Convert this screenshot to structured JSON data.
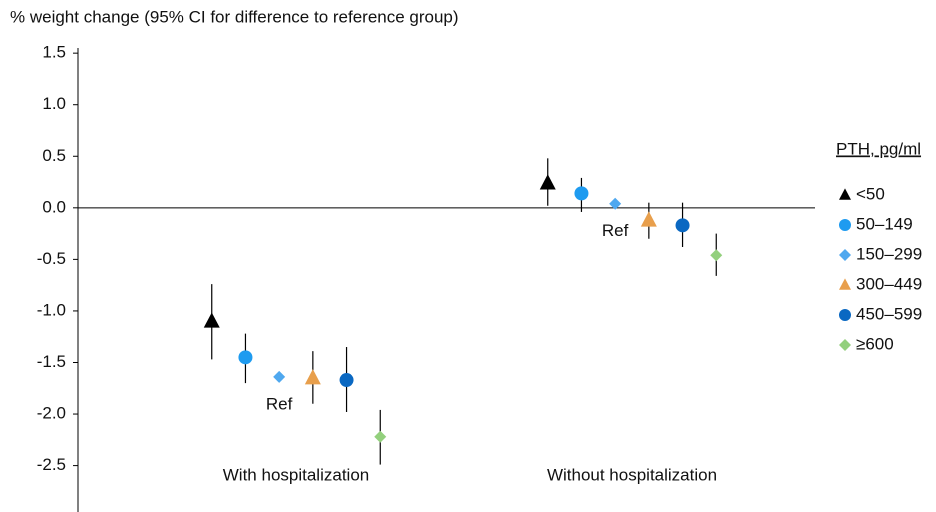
{
  "chart_data": {
    "type": "dot_errorbar",
    "title": "% weight change (95% CI for difference to reference group)",
    "categories": [
      "With hospitalization",
      "Without hospitalization"
    ],
    "ylim": [
      -2.95,
      1.55
    ],
    "yticks": [
      1.5,
      {
        "value": 1,
        "label": "1.0"
      },
      0.5,
      {
        "value": 0,
        "label": "0.0"
      },
      -0.5,
      {
        "value": -1,
        "label": "-1.0"
      },
      -1.5,
      {
        "value": -2,
        "label": "-2.0"
      },
      -2.5
    ],
    "legend_title": "PTH, pg/ml",
    "legend_position": "right",
    "annotations": [
      "Ref",
      "Ref"
    ],
    "series": [
      {
        "name": "<50",
        "color": "#000000",
        "marker": "triangle",
        "values": [
          -1.1,
          0.24
        ],
        "ci_low": [
          -1.47,
          0.02
        ],
        "ci_high": [
          -0.74,
          0.48
        ]
      },
      {
        "name": "50–149",
        "color": "#1e9bf0",
        "marker": "circle",
        "values": [
          -1.45,
          0.14
        ],
        "ci_low": [
          -1.7,
          -0.04
        ],
        "ci_high": [
          -1.22,
          0.29
        ]
      },
      {
        "name": "150–299",
        "color": "#4fa8ef",
        "marker": "diamond",
        "values": [
          -1.64,
          0.04
        ],
        "ci_low": [
          null,
          null
        ],
        "ci_high": [
          null,
          null
        ]
      },
      {
        "name": "300–449",
        "color": "#e89f4c",
        "marker": "triangle",
        "values": [
          -1.65,
          -0.12
        ],
        "ci_low": [
          -1.9,
          -0.3
        ],
        "ci_high": [
          -1.39,
          0.05
        ]
      },
      {
        "name": "450–599",
        "color": "#0a68c2",
        "marker": "circle",
        "values": [
          -1.67,
          -0.17
        ],
        "ci_low": [
          -1.98,
          -0.38
        ],
        "ci_high": [
          -1.35,
          0.05
        ]
      },
      {
        "name": "≥600",
        "color": "#93d07d",
        "marker": "diamond",
        "values": [
          -2.22,
          -0.46
        ],
        "ci_low": [
          -2.49,
          -0.66
        ],
        "ci_high": [
          -1.96,
          -0.25
        ]
      }
    ]
  }
}
